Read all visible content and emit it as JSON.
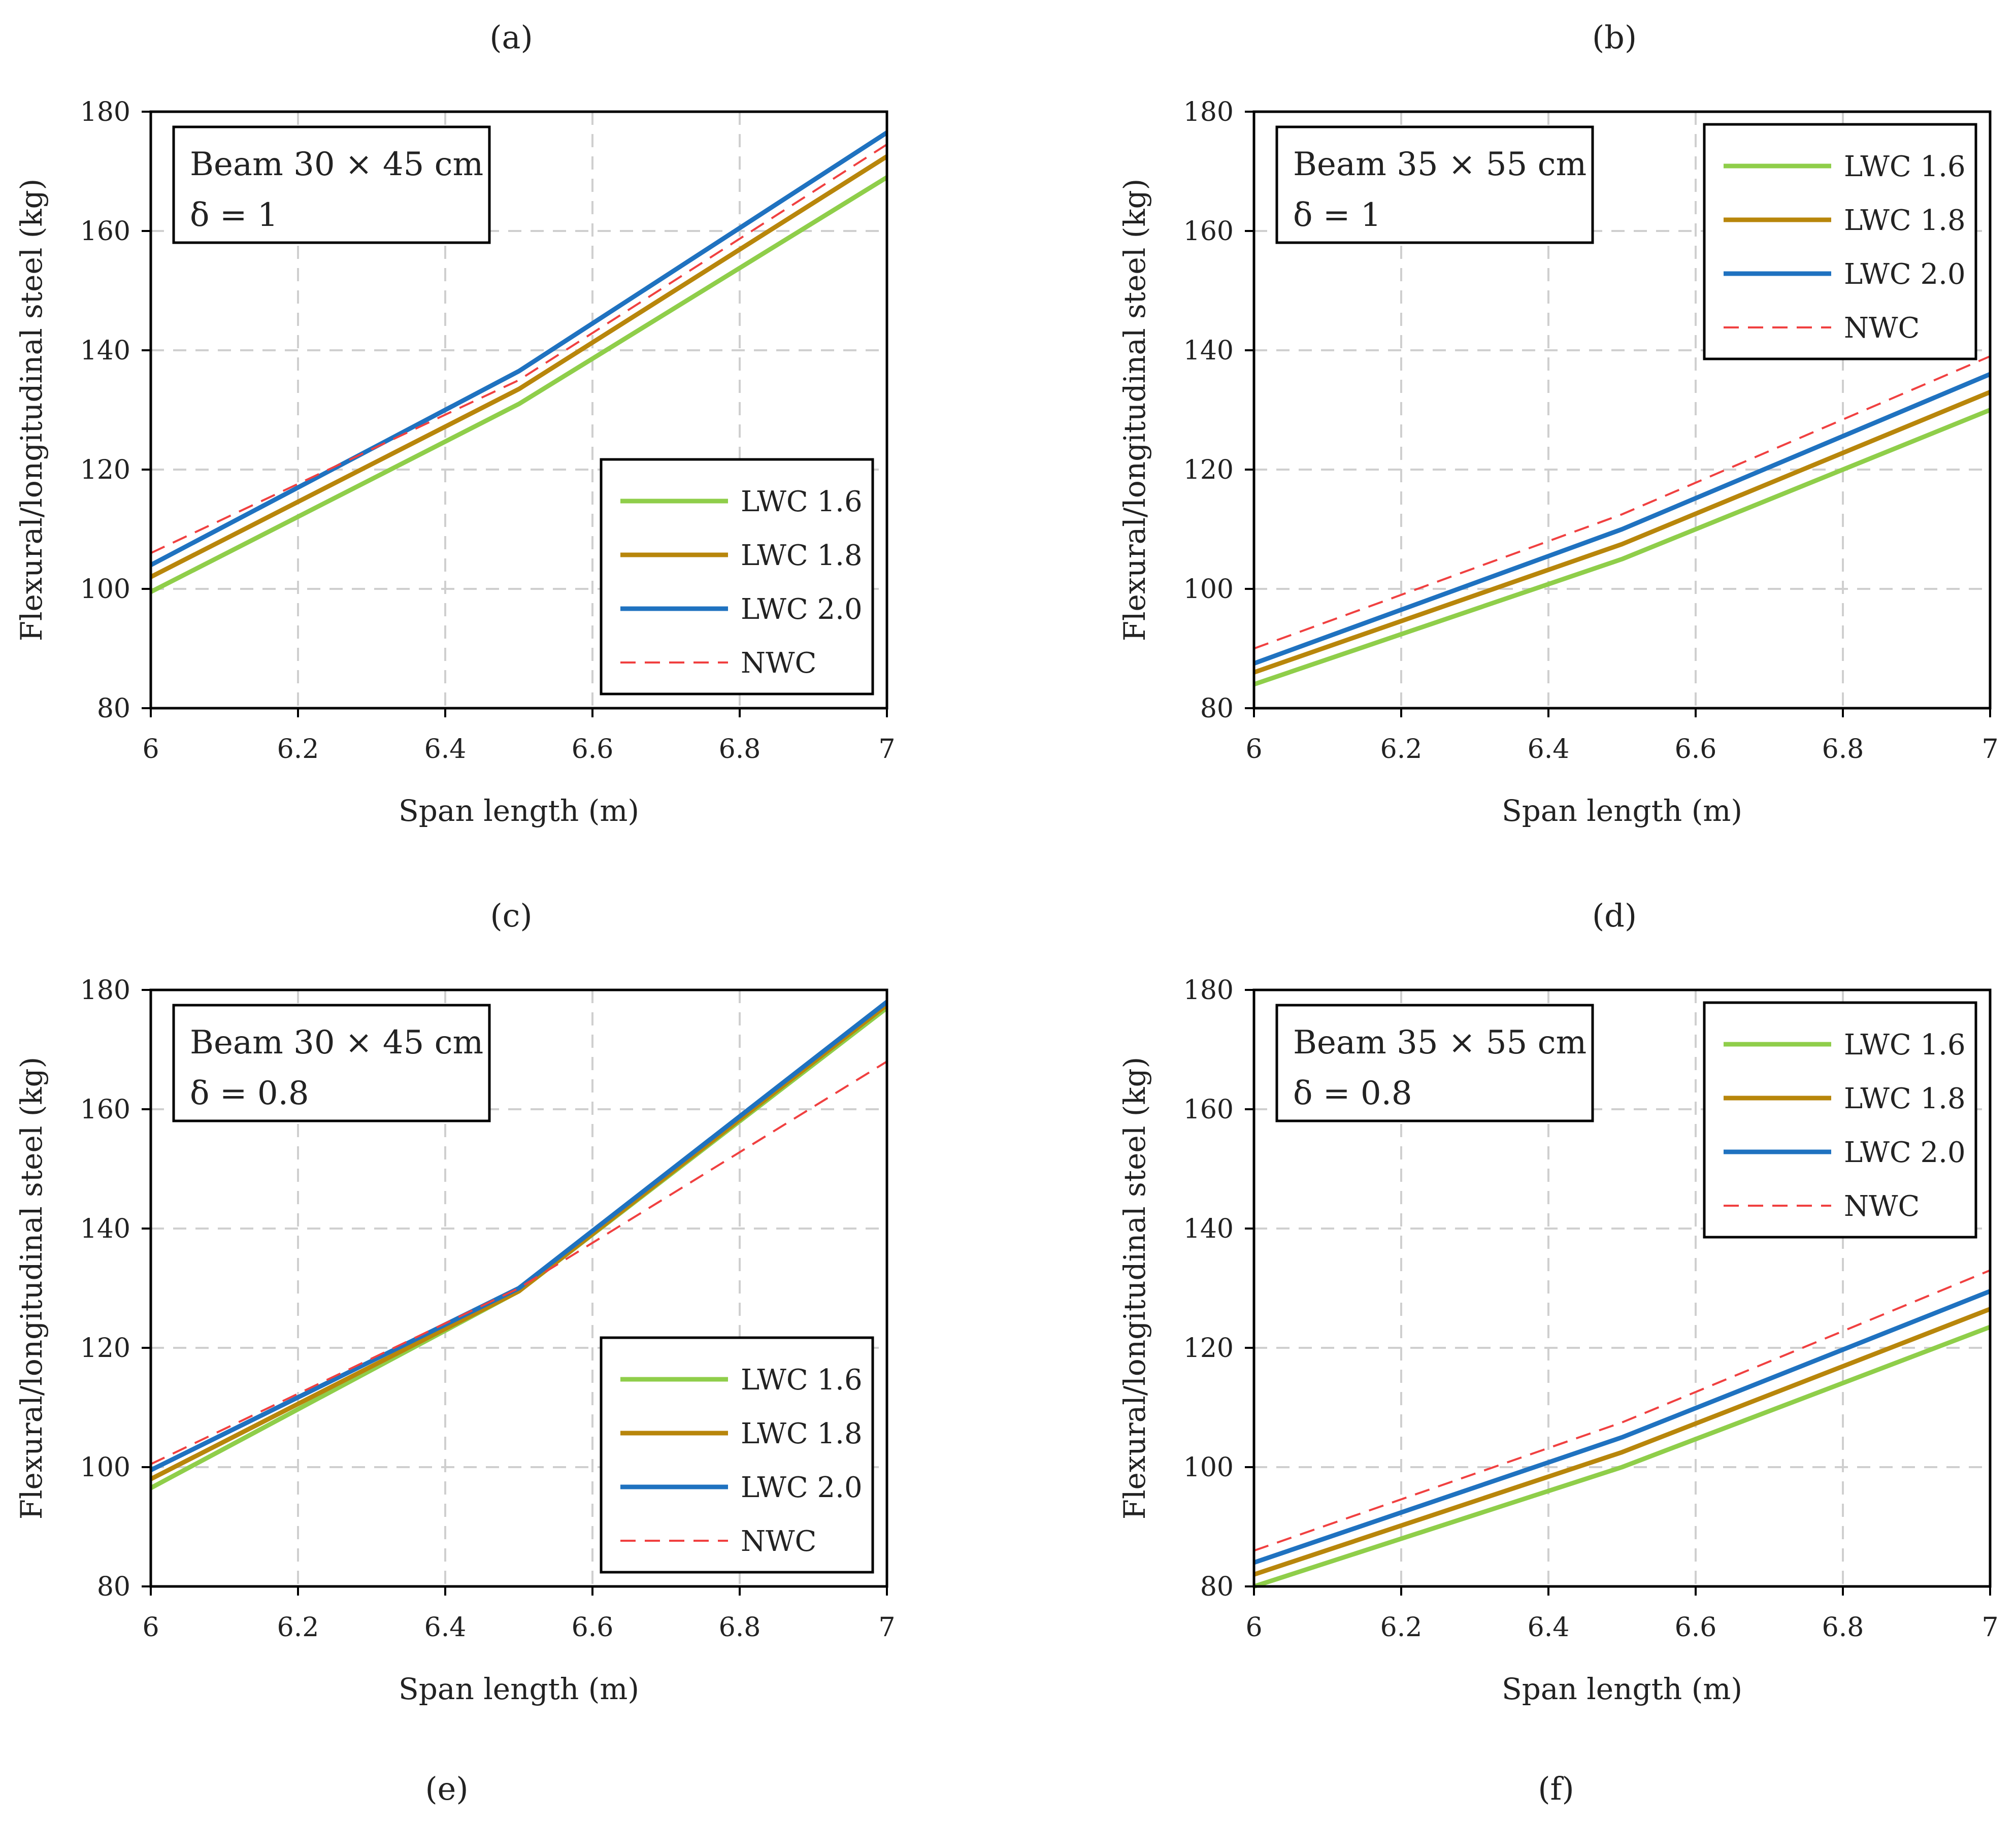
{
  "figure": {
    "bottom_labels": [
      "(e)",
      "(f)"
    ]
  },
  "chart_data": [
    {
      "type": "line",
      "panel_label": "(a)",
      "title": "",
      "info_box": [
        "Beam 30 × 45 cm",
        "δ = 1"
      ],
      "xlabel": "Span length (m)",
      "ylabel": "Flexural/longitudinal steel (kg)",
      "xlim": [
        6,
        7
      ],
      "ylim": [
        80,
        180
      ],
      "xticks": [
        "6",
        "6.2",
        "6.4",
        "6.6",
        "6.8",
        "7"
      ],
      "yticks": [
        "80",
        "100",
        "120",
        "140",
        "160",
        "180"
      ],
      "grid": true,
      "legend_position": "bottom-right",
      "x": [
        6,
        6.5,
        7
      ],
      "series": [
        {
          "name": "LWC 1.6",
          "color": "#8fce4a",
          "style": "solid",
          "values": [
            99.5,
            131,
            169
          ]
        },
        {
          "name": "LWC 1.8",
          "color": "#b8860b",
          "style": "solid",
          "values": [
            102,
            133.5,
            172.5
          ]
        },
        {
          "name": "LWC 2.0",
          "color": "#1f72c0",
          "style": "solid",
          "values": [
            104,
            136.5,
            176.5
          ]
        },
        {
          "name": "NWC",
          "color": "#f04040",
          "style": "dashed",
          "values": [
            106,
            135,
            174.5
          ]
        }
      ]
    },
    {
      "type": "line",
      "panel_label": "(b)",
      "title": "",
      "info_box": [
        "Beam 35 × 55 cm",
        "δ = 1"
      ],
      "xlabel": "Span length (m)",
      "ylabel": "Flexural/longitudinal steel (kg)",
      "xlim": [
        6,
        7
      ],
      "ylim": [
        80,
        180
      ],
      "xticks": [
        "6",
        "6.2",
        "6.4",
        "6.6",
        "6.8",
        "7"
      ],
      "yticks": [
        "80",
        "100",
        "120",
        "140",
        "160",
        "180"
      ],
      "grid": true,
      "legend_position": "top-right",
      "x": [
        6,
        6.5,
        7
      ],
      "series": [
        {
          "name": "LWC 1.6",
          "color": "#8fce4a",
          "style": "solid",
          "values": [
            84,
            105,
            130
          ]
        },
        {
          "name": "LWC 1.8",
          "color": "#b8860b",
          "style": "solid",
          "values": [
            86,
            107.5,
            133
          ]
        },
        {
          "name": "LWC 2.0",
          "color": "#1f72c0",
          "style": "solid",
          "values": [
            87.5,
            110,
            136
          ]
        },
        {
          "name": "NWC",
          "color": "#f04040",
          "style": "dashed",
          "values": [
            90,
            112.5,
            139
          ]
        }
      ]
    },
    {
      "type": "line",
      "panel_label": "(c)",
      "title": "",
      "info_box": [
        "Beam 30 × 45 cm",
        "δ = 0.8"
      ],
      "xlabel": "Span length (m)",
      "ylabel": "Flexural/longitudinal steel (kg)",
      "xlim": [
        6,
        7
      ],
      "ylim": [
        80,
        180
      ],
      "xticks": [
        "6",
        "6.2",
        "6.4",
        "6.6",
        "6.8",
        "7"
      ],
      "yticks": [
        "80",
        "100",
        "120",
        "140",
        "160",
        "180"
      ],
      "grid": true,
      "legend_position": "bottom-right",
      "x": [
        6,
        6.5,
        7
      ],
      "series": [
        {
          "name": "LWC 1.6",
          "color": "#8fce4a",
          "style": "solid",
          "values": [
            96.5,
            129.5,
            177
          ]
        },
        {
          "name": "LWC 1.8",
          "color": "#b8860b",
          "style": "solid",
          "values": [
            98,
            129.5,
            177.5
          ]
        },
        {
          "name": "LWC 2.0",
          "color": "#1f72c0",
          "style": "solid",
          "values": [
            99.5,
            130,
            178
          ]
        },
        {
          "name": "NWC",
          "color": "#f04040",
          "style": "dashed",
          "values": [
            100.5,
            130,
            168
          ]
        }
      ]
    },
    {
      "type": "line",
      "panel_label": "(d)",
      "title": "",
      "info_box": [
        "Beam 35 × 55 cm",
        "δ = 0.8"
      ],
      "xlabel": "Span length (m)",
      "ylabel": "Flexural/longitudinal steel (kg)",
      "xlim": [
        6,
        7
      ],
      "ylim": [
        80,
        180
      ],
      "xticks": [
        "6",
        "6.2",
        "6.4",
        "6.6",
        "6.8",
        "7"
      ],
      "yticks": [
        "80",
        "100",
        "120",
        "140",
        "160",
        "180"
      ],
      "grid": true,
      "legend_position": "top-right",
      "x": [
        6,
        6.5,
        7
      ],
      "series": [
        {
          "name": "LWC 1.6",
          "color": "#8fce4a",
          "style": "solid",
          "values": [
            80,
            100,
            123.5
          ]
        },
        {
          "name": "LWC 1.8",
          "color": "#b8860b",
          "style": "solid",
          "values": [
            82,
            102.5,
            126.5
          ]
        },
        {
          "name": "LWC 2.0",
          "color": "#1f72c0",
          "style": "solid",
          "values": [
            84,
            105,
            129.5
          ]
        },
        {
          "name": "NWC",
          "color": "#f04040",
          "style": "dashed",
          "values": [
            86,
            107.5,
            133
          ]
        }
      ]
    }
  ]
}
